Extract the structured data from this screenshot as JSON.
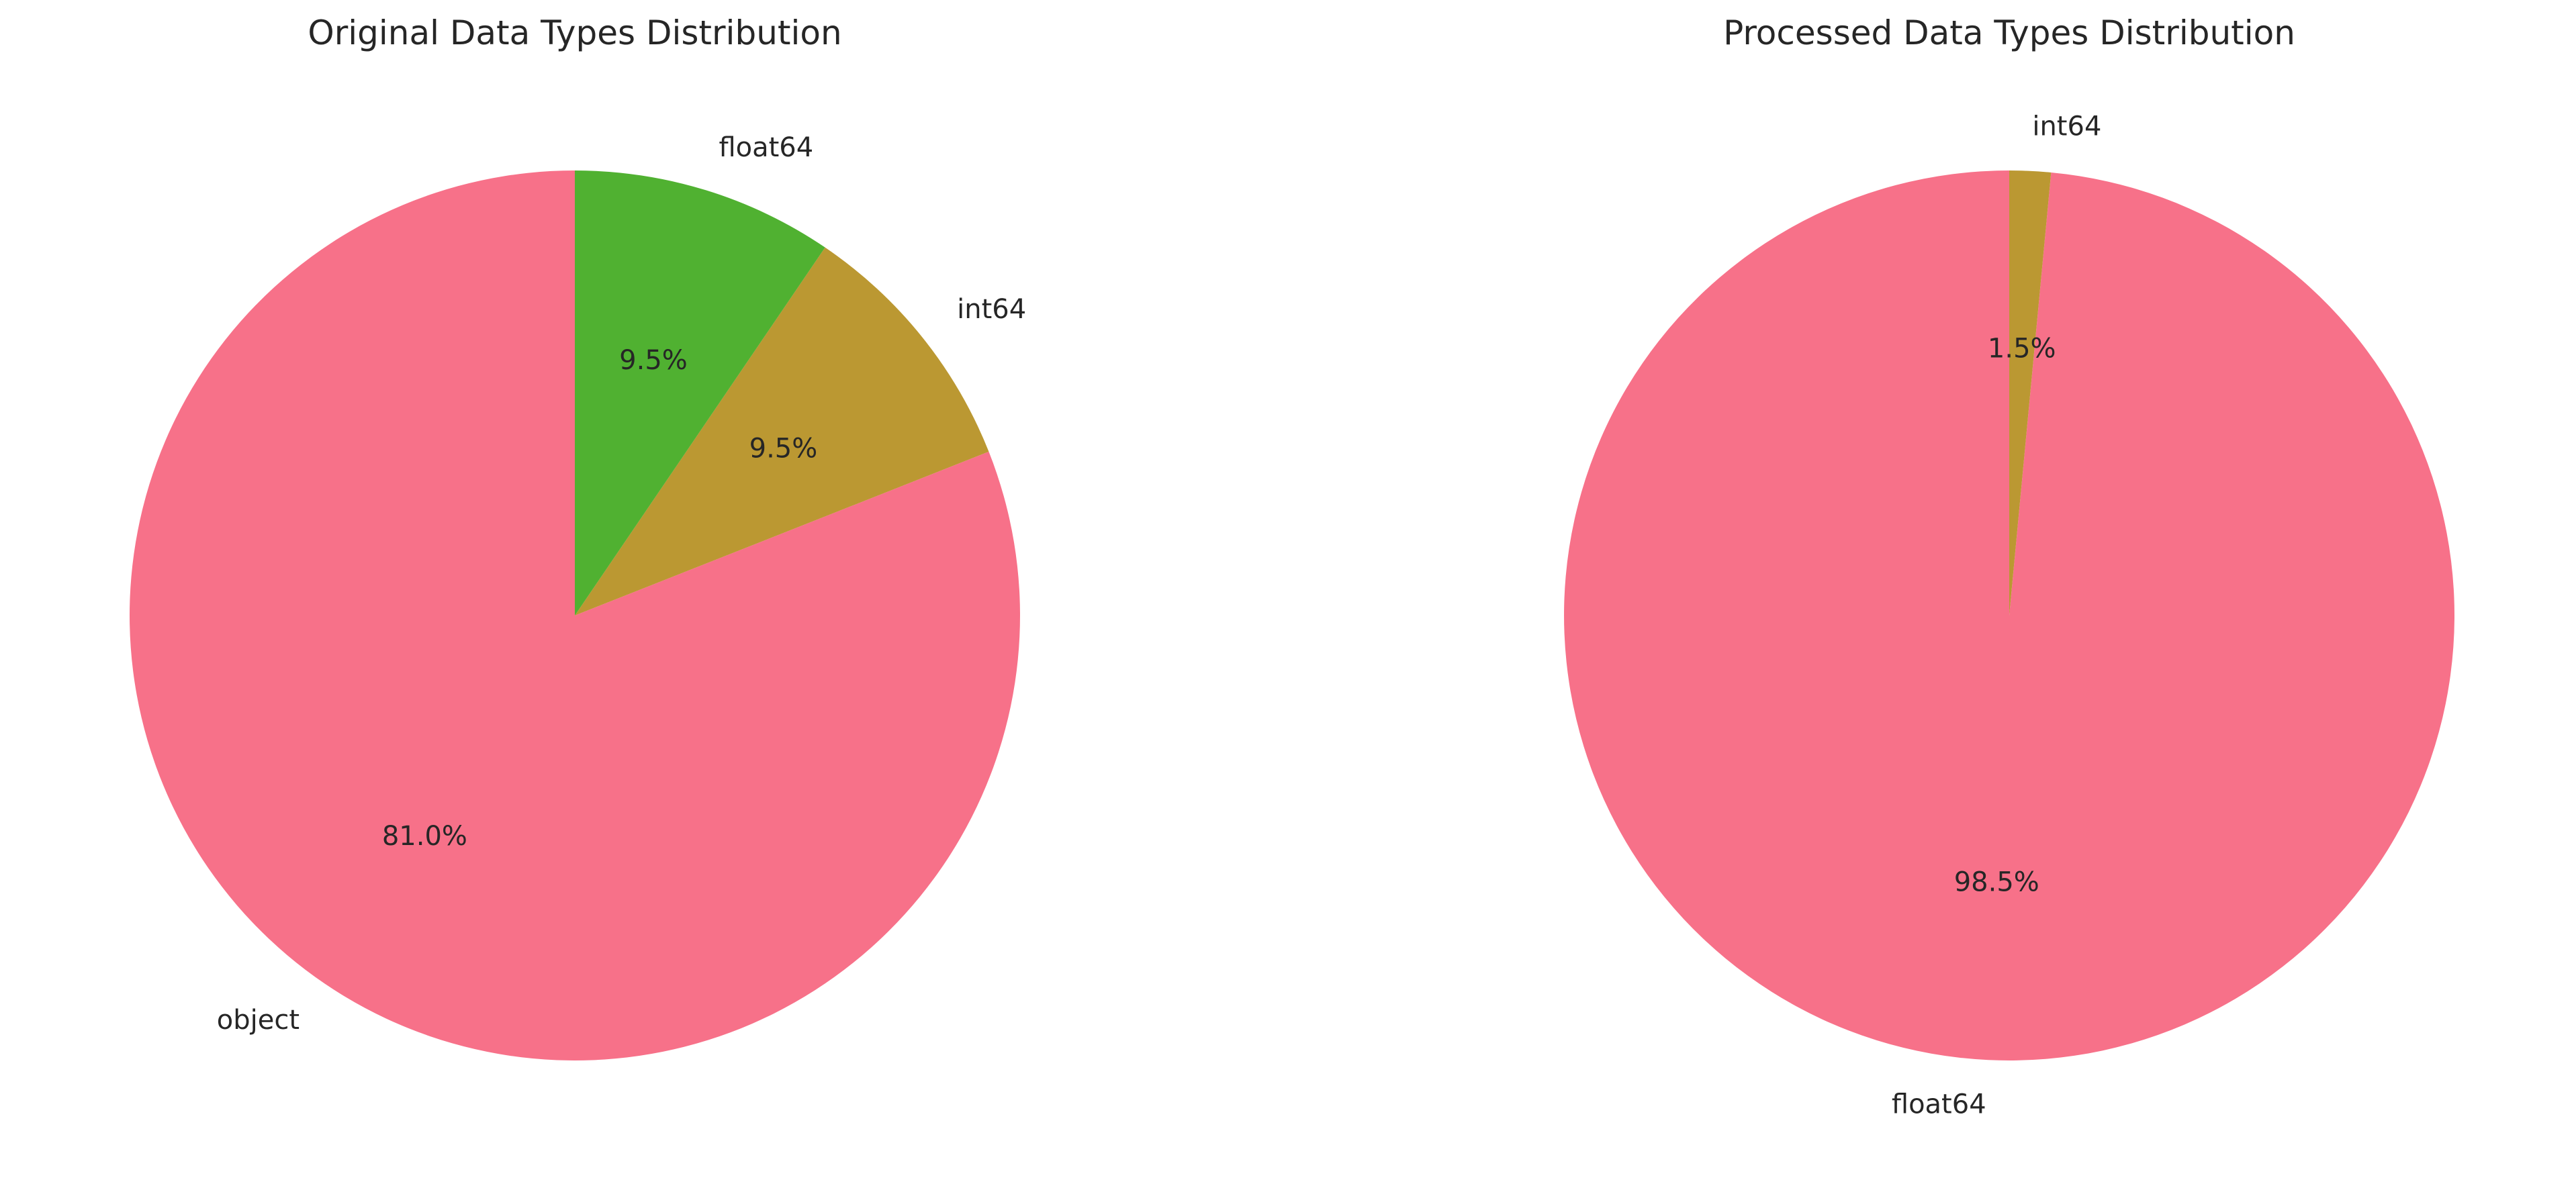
{
  "chart_data": [
    {
      "type": "pie",
      "title": "Original Data Types Distribution",
      "start_angle_deg": 90,
      "direction": "counterclockwise",
      "slices": [
        {
          "label": "object",
          "value": 81.0,
          "pct_label": "81.0%",
          "color": "#f77189"
        },
        {
          "label": "int64",
          "value": 9.5,
          "pct_label": "9.5%",
          "color": "#bb9832"
        },
        {
          "label": "float64",
          "value": 9.5,
          "pct_label": "9.5%",
          "color": "#50b131"
        }
      ]
    },
    {
      "type": "pie",
      "title": "Processed Data Types Distribution",
      "start_angle_deg": 90,
      "direction": "counterclockwise",
      "slices": [
        {
          "label": "float64",
          "value": 98.5,
          "pct_label": "98.5%",
          "color": "#f77189"
        },
        {
          "label": "int64",
          "value": 1.5,
          "pct_label": "1.5%",
          "color": "#bb9832"
        }
      ]
    }
  ]
}
